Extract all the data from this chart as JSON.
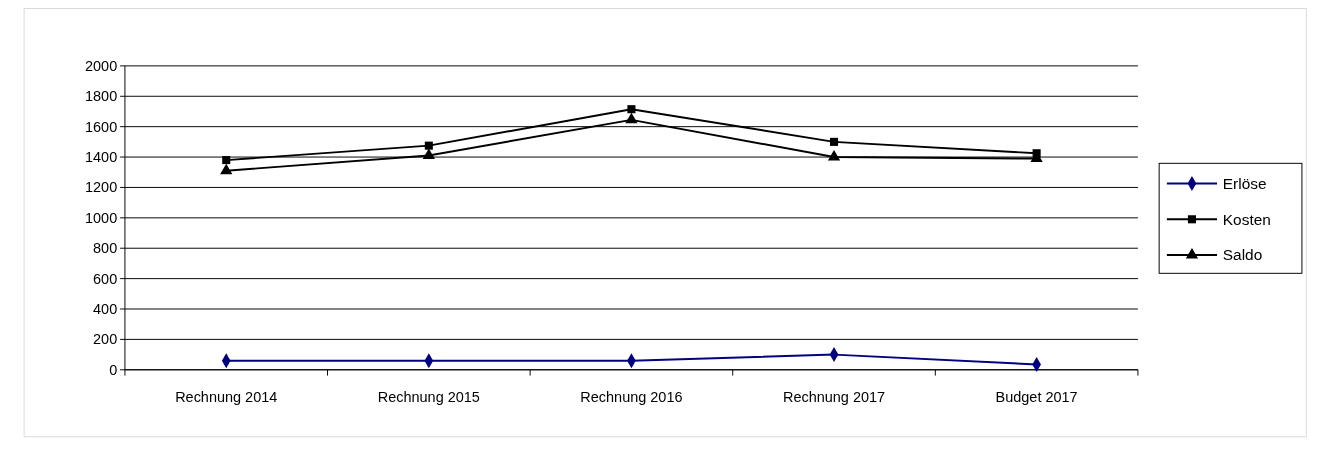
{
  "chart_data": {
    "type": "line",
    "categories": [
      "Rechnung 2014",
      "Rechnung 2015",
      "Rechnung 2016",
      "Rechnung 2017",
      "Budget 2017"
    ],
    "series": [
      {
        "name": "Erlöse",
        "color": "#000080",
        "values": [
          60,
          60,
          60,
          100,
          35
        ],
        "marker": "diamond"
      },
      {
        "name": "Kosten",
        "color": "#000000",
        "values": [
          1380,
          1475,
          1715,
          1500,
          1425
        ],
        "marker": "square"
      },
      {
        "name": "Saldo",
        "color": "#000000",
        "values": [
          1310,
          1410,
          1645,
          1400,
          1390
        ],
        "marker": "triangle"
      }
    ],
    "ylim": [
      0,
      2000
    ],
    "yticks": [
      0,
      200,
      400,
      600,
      800,
      1000,
      1200,
      1400,
      1600,
      1800,
      2000
    ],
    "grid": "y",
    "legend": "right"
  }
}
